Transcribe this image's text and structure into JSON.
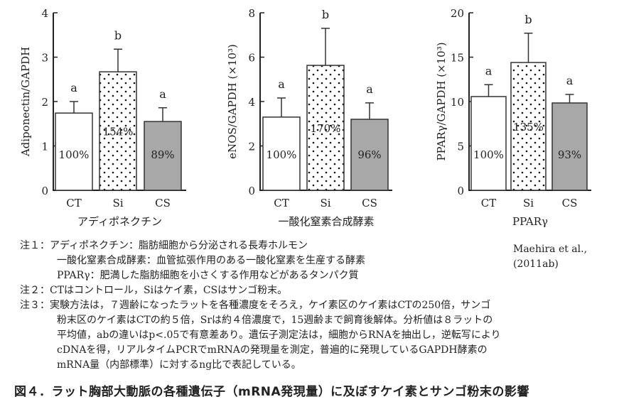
{
  "chart_data": [
    {
      "type": "bar",
      "ylabel": "Adiponectin/GAPDH",
      "xlabel": "アディポネクチン",
      "ylim": [
        0,
        4
      ],
      "yticks": [
        0,
        1,
        2,
        3,
        4
      ],
      "categories": [
        "CT",
        "Si",
        "CS"
      ],
      "values": [
        1.74,
        2.67,
        1.55
      ],
      "errors": [
        0.26,
        0.51,
        0.31
      ],
      "significance": [
        "a",
        "b",
        "a"
      ],
      "percent_labels": [
        "100%",
        "154%",
        "89%"
      ]
    },
    {
      "type": "bar",
      "ylabel": "eNOS/GAPDH (×10³)",
      "xlabel": "一酸化窒素合成酵素",
      "ylim": [
        0,
        8
      ],
      "yticks": [
        0,
        2,
        4,
        6,
        8
      ],
      "categories": [
        "CT",
        "Si",
        "CS"
      ],
      "values": [
        3.3,
        5.63,
        3.2
      ],
      "errors": [
        0.86,
        1.67,
        0.74
      ],
      "significance": [
        "a",
        "b",
        "a"
      ],
      "percent_labels": [
        "100%",
        "170%",
        "96%"
      ]
    },
    {
      "type": "bar",
      "ylabel": "PPARγ/GAPDH (×10³)",
      "xlabel": "PPARγ",
      "ylim": [
        0,
        20
      ],
      "yticks": [
        0,
        5,
        10,
        15,
        20
      ],
      "categories": [
        "CT",
        "Si",
        "CS"
      ],
      "values": [
        10.56,
        14.4,
        9.84
      ],
      "errors": [
        1.34,
        3.3,
        0.96
      ],
      "significance": [
        "a",
        "b",
        "a"
      ],
      "percent_labels": [
        "100%",
        "135%",
        "93%"
      ]
    }
  ],
  "colors": {
    "ct": "#ffffff",
    "si": "#ffffff",
    "cs": "#a8a8a8",
    "axis": "#222222"
  },
  "notes": {
    "n1_a": "注１：アディポネクチン：脂肪細胞から分泌される長寿ホルモン",
    "n1_b": "一酸化窒素合成酵素：血管拡張作用のある一酸化窒素を生産する酵素",
    "n1_c": "PPARγ：肥満した脂肪細胞を小さくする作用などがあるタンパク質",
    "n2": "注２：CTはコントロール，Siはケイ素，CSはサンゴ粉末。",
    "n3_a": "注３：実験方法は，７週齢になったラットを各種濃度をそろえ，ケイ素区のケイ素はCTの250倍，サンゴ",
    "n3_b": "粉末区のケイ素はCTの約５倍，Srは約４倍濃度で，15週齢まで飼育後解体。分析値は８ラットの",
    "n3_c": "平均値，abの違いはp<.05で有意差あり。遺伝子測定法は，細胞からRNAを抽出し，逆転写により",
    "n3_d": "cDNAを得，リアルタイムPCRでmRNAの発現量を測定，普遍的に発現しているGAPDH酵素の",
    "n3_e": "mRNA量（内部標準）に対するng比で表記している。"
  },
  "citation": {
    "line1": "Maehira et al.,",
    "line2": "(2011ab)"
  },
  "caption": "図４．ラット胸部大動脈の各種遺伝子（mRNA発現量）に及ぼすケイ素とサンゴ粉末の影響"
}
